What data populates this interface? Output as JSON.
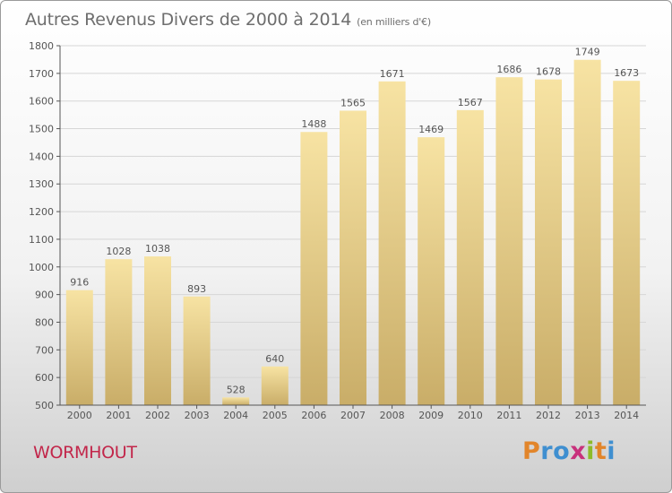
{
  "title": {
    "main": "Autres Revenus Divers de 2000 à 2014",
    "unit": "(en milliers d'€)"
  },
  "commune": "WORMHOUT",
  "brand": {
    "letters": [
      {
        "ch": "P",
        "color": "#e2852a"
      },
      {
        "ch": "r",
        "color": "#3f8fd0"
      },
      {
        "ch": "o",
        "color": "#3f8fd0"
      },
      {
        "ch": "x",
        "color": "#c8317c"
      },
      {
        "ch": "i",
        "color": "#8dbb2a"
      },
      {
        "ch": "t",
        "color": "#e2852a"
      },
      {
        "ch": "i",
        "color": "#3f8fd0"
      }
    ]
  },
  "colors": {
    "bar_light": "#f7e3a3",
    "bar_dark": "#c9ad68",
    "grid": "#d6d6d6",
    "axis": "#555555",
    "commune": "#c2264a"
  },
  "chart_data": {
    "type": "bar",
    "categories": [
      "2000",
      "2001",
      "2002",
      "2003",
      "2004",
      "2005",
      "2006",
      "2007",
      "2008",
      "2009",
      "2010",
      "2011",
      "2012",
      "2013",
      "2014"
    ],
    "values": [
      916,
      1028,
      1038,
      893,
      528,
      640,
      1488,
      1565,
      1671,
      1469,
      1567,
      1686,
      1678,
      1749,
      1673
    ],
    "ylim": [
      500,
      1800
    ],
    "yticks": [
      500,
      600,
      700,
      800,
      900,
      1000,
      1100,
      1200,
      1300,
      1400,
      1500,
      1600,
      1700,
      1800
    ],
    "grid": true,
    "xlabel": "",
    "ylabel": ""
  }
}
